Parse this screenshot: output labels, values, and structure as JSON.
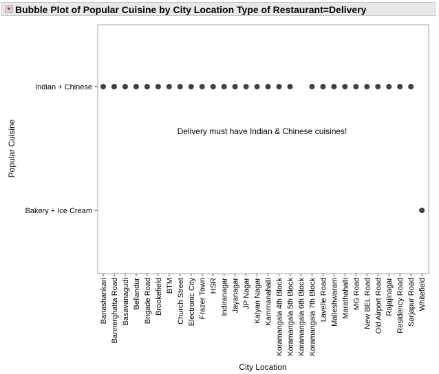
{
  "window": {
    "title": "Bubble Plot of Popular Cuisine by City Location Type of Restaurant=Delivery"
  },
  "icons": {
    "disclosure": "red-triangle-menu-icon"
  },
  "colors": {
    "marker": "#404040",
    "frame": "#a0a0a0",
    "accent": "#d81e1e"
  },
  "chart_data": {
    "type": "scatter",
    "title": "Bubble Plot of Popular Cuisine by City Location Type of Restaurant=Delivery",
    "xlabel": "City Location",
    "ylabel": "Popular Cuisine",
    "grid": false,
    "legend": "none",
    "categories": [
      "Banashankari",
      "Bannerghatta Road",
      "Basavanagudi",
      "Bellandur",
      "Brigade Road",
      "Brookefield",
      "BTM",
      "Church Street",
      "Electronic City",
      "Frazer Town",
      "HSR",
      "Indiranagar",
      "Jayanagar",
      "JP Nagar",
      "Kalyan Nagar",
      "Kammanahalli",
      "Koramangala 4th Block",
      "Koramangala 5th Block",
      "Koramangala 6th Block",
      "Koramangala 7th Block",
      "Lavelle Road",
      "Malleshwaram",
      "Marathahalli",
      "MG Road",
      "New BEL Road",
      "Old Airport Road",
      "Rajajinagar",
      "Residency Road",
      "Sarjapur Road",
      "Whitefield"
    ],
    "y_categories": [
      "Indian + Chinese",
      "Bakery + Ice Cream"
    ],
    "points": [
      {
        "x": "Banashankari",
        "y": "Indian + Chinese"
      },
      {
        "x": "Bannerghatta Road",
        "y": "Indian + Chinese"
      },
      {
        "x": "Basavanagudi",
        "y": "Indian + Chinese"
      },
      {
        "x": "Bellandur",
        "y": "Indian + Chinese"
      },
      {
        "x": "Brigade Road",
        "y": "Indian + Chinese"
      },
      {
        "x": "Brookefield",
        "y": "Indian + Chinese"
      },
      {
        "x": "BTM",
        "y": "Indian + Chinese"
      },
      {
        "x": "Church Street",
        "y": "Indian + Chinese"
      },
      {
        "x": "Electronic City",
        "y": "Indian + Chinese"
      },
      {
        "x": "Frazer Town",
        "y": "Indian + Chinese"
      },
      {
        "x": "HSR",
        "y": "Indian + Chinese"
      },
      {
        "x": "Indiranagar",
        "y": "Indian + Chinese"
      },
      {
        "x": "Jayanagar",
        "y": "Indian + Chinese"
      },
      {
        "x": "JP Nagar",
        "y": "Indian + Chinese"
      },
      {
        "x": "Kalyan Nagar",
        "y": "Indian + Chinese"
      },
      {
        "x": "Kammanahalli",
        "y": "Indian + Chinese"
      },
      {
        "x": "Koramangala 4th Block",
        "y": "Indian + Chinese"
      },
      {
        "x": "Koramangala 5th Block",
        "y": "Indian + Chinese"
      },
      {
        "x": "Koramangala 7th Block",
        "y": "Indian + Chinese"
      },
      {
        "x": "Lavelle Road",
        "y": "Indian + Chinese"
      },
      {
        "x": "Malleshwaram",
        "y": "Indian + Chinese"
      },
      {
        "x": "Marathahalli",
        "y": "Indian + Chinese"
      },
      {
        "x": "MG Road",
        "y": "Indian + Chinese"
      },
      {
        "x": "New BEL Road",
        "y": "Indian + Chinese"
      },
      {
        "x": "Old Airport Road",
        "y": "Indian + Chinese"
      },
      {
        "x": "Rajajinagar",
        "y": "Indian + Chinese"
      },
      {
        "x": "Residency Road",
        "y": "Indian + Chinese"
      },
      {
        "x": "Sarjapur Road",
        "y": "Indian + Chinese"
      },
      {
        "x": "Whitefield",
        "y": "Bakery + Ice Cream"
      }
    ],
    "annotations": [
      {
        "text": "Delivery must have Indian & Chinese cuisines!"
      }
    ]
  }
}
